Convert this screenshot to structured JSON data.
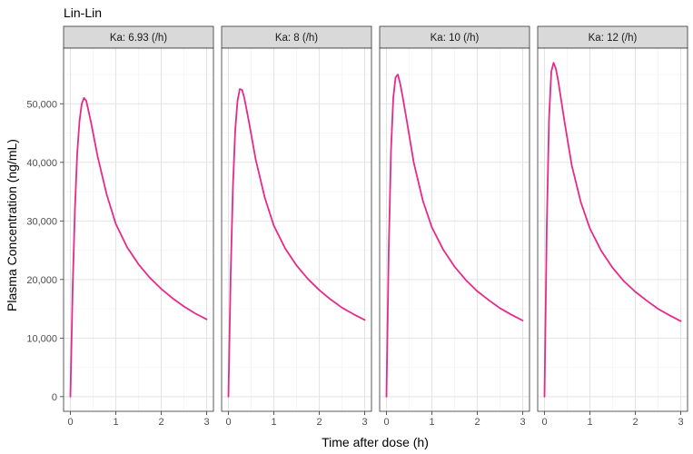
{
  "chart_data": {
    "type": "line",
    "title": "Lin-Lin",
    "xlabel": "Time after dose (h)",
    "ylabel": "Plasma Concentration (ng/mL)",
    "xlim": [
      -0.15,
      3.15
    ],
    "ylim": [
      -2500,
      59500
    ],
    "x_ticks": [
      0,
      1,
      2,
      3
    ],
    "x_tick_labels": [
      "0",
      "1",
      "2",
      "3"
    ],
    "y_ticks": [
      0,
      10000,
      20000,
      30000,
      40000,
      50000
    ],
    "y_tick_labels": [
      "0",
      "10,000",
      "20,000",
      "30,000",
      "40,000",
      "50,000"
    ],
    "grid": true,
    "line_color": "#e7298a",
    "facets": [
      {
        "label": "Ka: 6.93 (/h)",
        "x": [
          0,
          0.05,
          0.1,
          0.15,
          0.2,
          0.25,
          0.3,
          0.35,
          0.45,
          0.6,
          0.8,
          1.0,
          1.25,
          1.5,
          1.75,
          2.0,
          2.25,
          2.5,
          2.75,
          3.0
        ],
        "y": [
          0,
          18500,
          32000,
          41500,
          47000,
          50000,
          51000,
          50500,
          47000,
          41000,
          34500,
          29500,
          25500,
          22600,
          20300,
          18400,
          16800,
          15400,
          14200,
          13200
        ]
      },
      {
        "label": "Ka: 8 (/h)",
        "x": [
          0,
          0.05,
          0.1,
          0.15,
          0.2,
          0.25,
          0.3,
          0.35,
          0.45,
          0.6,
          0.8,
          1.0,
          1.25,
          1.5,
          1.75,
          2.0,
          2.25,
          2.5,
          2.75,
          3.0
        ],
        "y": [
          0,
          21000,
          36000,
          45500,
          50500,
          52500,
          52400,
          51000,
          47000,
          40500,
          34000,
          29200,
          25300,
          22400,
          20100,
          18200,
          16600,
          15200,
          14100,
          13100
        ]
      },
      {
        "label": "Ka: 10 (/h)",
        "x": [
          0,
          0.05,
          0.1,
          0.15,
          0.2,
          0.25,
          0.3,
          0.35,
          0.45,
          0.6,
          0.8,
          1.0,
          1.25,
          1.5,
          1.75,
          2.0,
          2.25,
          2.5,
          2.75,
          3.0
        ],
        "y": [
          0,
          25000,
          42000,
          51000,
          54500,
          55000,
          53500,
          51500,
          47000,
          40000,
          33500,
          28900,
          25100,
          22200,
          19900,
          18000,
          16500,
          15100,
          14000,
          13000
        ]
      },
      {
        "label": "Ka: 12 (/h)",
        "x": [
          0,
          0.05,
          0.1,
          0.15,
          0.2,
          0.25,
          0.3,
          0.35,
          0.45,
          0.6,
          0.8,
          1.0,
          1.25,
          1.5,
          1.75,
          2.0,
          2.25,
          2.5,
          2.75,
          3.0
        ],
        "y": [
          0,
          29000,
          47500,
          55500,
          57000,
          56000,
          54000,
          51500,
          46500,
          39500,
          33200,
          28700,
          24900,
          22000,
          19700,
          17900,
          16400,
          15000,
          13900,
          12900
        ]
      }
    ]
  }
}
